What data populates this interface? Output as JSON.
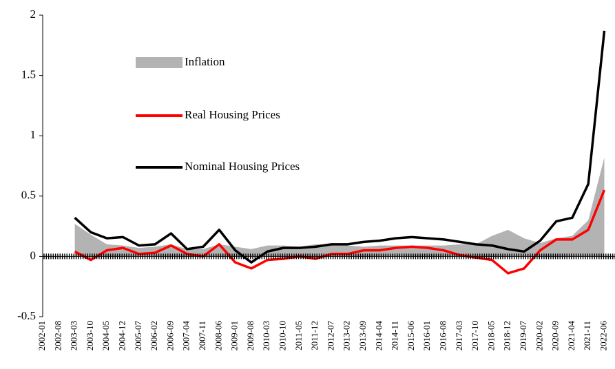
{
  "chart_data": {
    "type": "line",
    "categories": [
      "2002-01",
      "2002-08",
      "2003-03",
      "2003-10",
      "2004-05",
      "2004-12",
      "2005-07",
      "2006-02",
      "2006-09",
      "2007-04",
      "2007-11",
      "2008-06",
      "2009-01",
      "2009-08",
      "2010-03",
      "2010-10",
      "2011-05",
      "2011-12",
      "2012-07",
      "2013-02",
      "2013-09",
      "2014-04",
      "2014-11",
      "2015-06",
      "2016-01",
      "2016-08",
      "2017-03",
      "2017-10",
      "2018-05",
      "2018-12",
      "2019-07",
      "2020-02",
      "2020-09",
      "2021-04",
      "2021-11",
      "2022-06"
    ],
    "series": [
      {
        "name": "Inflation",
        "kind": "area",
        "color": "#b3b3b3",
        "values": [
          null,
          null,
          0.27,
          0.18,
          0.1,
          0.09,
          0.07,
          0.08,
          0.1,
          0.06,
          0.06,
          0.1,
          0.08,
          0.06,
          0.09,
          0.09,
          0.08,
          0.1,
          0.1,
          0.09,
          0.08,
          0.09,
          0.09,
          0.09,
          0.09,
          0.09,
          0.1,
          0.1,
          0.17,
          0.22,
          0.15,
          0.11,
          0.15,
          0.17,
          0.3,
          0.82
        ]
      },
      {
        "name": "Real Housing Prices",
        "kind": "line",
        "color": "#ff0000",
        "values": [
          null,
          null,
          0.04,
          -0.03,
          0.05,
          0.07,
          0.02,
          0.03,
          0.09,
          0.02,
          0.0,
          0.1,
          -0.05,
          -0.1,
          -0.03,
          -0.02,
          0.0,
          -0.02,
          0.02,
          0.02,
          0.05,
          0.05,
          0.07,
          0.08,
          0.07,
          0.05,
          0.01,
          -0.01,
          -0.03,
          -0.14,
          -0.1,
          0.05,
          0.14,
          0.14,
          0.22,
          0.55
        ]
      },
      {
        "name": "Nominal Housing Prices",
        "kind": "line",
        "color": "#000000",
        "values": [
          null,
          null,
          0.32,
          0.2,
          0.15,
          0.16,
          0.09,
          0.1,
          0.19,
          0.06,
          0.08,
          0.22,
          0.05,
          -0.05,
          0.04,
          0.07,
          0.07,
          0.08,
          0.1,
          0.1,
          0.12,
          0.13,
          0.15,
          0.16,
          0.15,
          0.14,
          0.12,
          0.1,
          0.09,
          0.06,
          0.04,
          0.13,
          0.29,
          0.32,
          0.6,
          1.87
        ]
      }
    ],
    "ylim": [
      -0.5,
      2
    ],
    "yticks": [
      -0.5,
      0,
      0.5,
      1,
      1.5,
      2
    ]
  }
}
